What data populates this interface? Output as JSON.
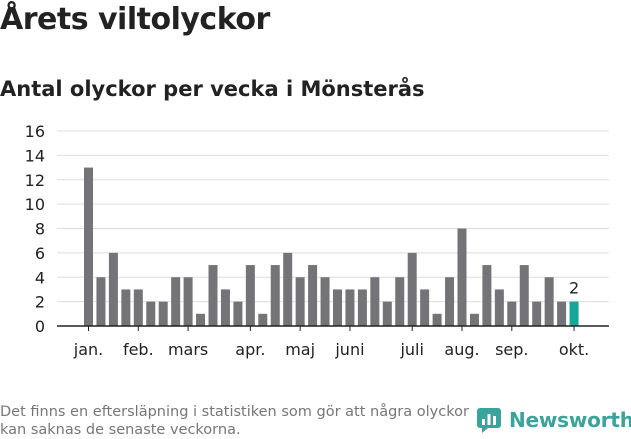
{
  "header": {
    "title": "Årets viltolyckor",
    "subtitle": "Antal olyckor per vecka i Mönsterås"
  },
  "footer": {
    "note": "Det finns en eftersläpning i statistiken som gör att några olyckor kan saknas de senaste veckorna.",
    "brand": "Newsworthy"
  },
  "colors": {
    "bar": "#747378",
    "highlight": "#15a69a",
    "grid": "#dddddd",
    "axis": "#222222",
    "text": "#222222"
  },
  "icons": {
    "brand_logo": "newsworthy-logo-icon"
  },
  "chart_data": {
    "type": "bar",
    "title": "Antal olyckor per vecka i Mönsterås",
    "xlabel": "",
    "ylabel": "",
    "ylim": [
      0,
      16
    ],
    "yticks": [
      0,
      2,
      4,
      6,
      8,
      10,
      12,
      14,
      16
    ],
    "grid": true,
    "weeks": [
      1,
      2,
      3,
      4,
      5,
      6,
      7,
      8,
      9,
      10,
      11,
      12,
      13,
      14,
      15,
      16,
      17,
      18,
      19,
      20,
      21,
      22,
      23,
      24,
      25,
      26,
      27,
      28,
      29,
      30,
      31,
      32,
      33,
      34,
      35,
      36,
      37,
      38,
      39,
      40
    ],
    "values": [
      13,
      4,
      6,
      3,
      3,
      2,
      2,
      4,
      4,
      1,
      5,
      3,
      2,
      5,
      1,
      5,
      6,
      4,
      5,
      4,
      3,
      3,
      3,
      4,
      2,
      4,
      6,
      3,
      1,
      4,
      8,
      1,
      5,
      3,
      2,
      5,
      2,
      4,
      2,
      2
    ],
    "month_labels": [
      {
        "label": "jan.",
        "week": 1
      },
      {
        "label": "feb.",
        "week": 5
      },
      {
        "label": "mars",
        "week": 9
      },
      {
        "label": "apr.",
        "week": 14
      },
      {
        "label": "maj",
        "week": 18
      },
      {
        "label": "juni",
        "week": 22
      },
      {
        "label": "juli",
        "week": 27
      },
      {
        "label": "aug.",
        "week": 31
      },
      {
        "label": "sep.",
        "week": 35
      },
      {
        "label": "okt.",
        "week": 40
      }
    ],
    "highlight": {
      "week": 40,
      "value": 2,
      "label": "2"
    }
  }
}
